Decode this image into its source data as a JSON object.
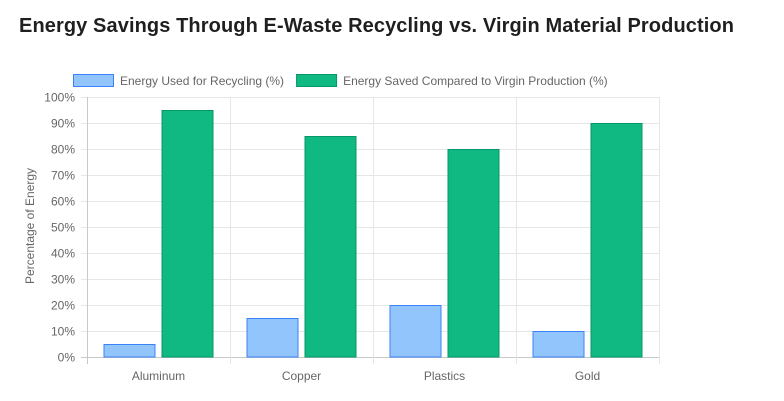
{
  "chart_data": {
    "type": "bar",
    "title": "Energy Savings Through E-Waste Recycling vs. Virgin Material Production",
    "xlabel": "",
    "ylabel": "Percentage of Energy",
    "ylim": [
      0,
      100
    ],
    "yticks": [
      0,
      10,
      20,
      30,
      40,
      50,
      60,
      70,
      80,
      90,
      100
    ],
    "ytick_suffix": "%",
    "grid": true,
    "legend_position": "top",
    "categories": [
      "Aluminum",
      "Copper",
      "Plastics",
      "Gold"
    ],
    "series": [
      {
        "name": "Energy Used for Recycling (%)",
        "values": [
          5,
          15,
          20,
          10
        ],
        "color": "#93c5fd",
        "border": "#3b82f6"
      },
      {
        "name": "Energy Saved Compared to Virgin Production (%)",
        "values": [
          95,
          85,
          80,
          90
        ],
        "color": "#10b981",
        "border": "#059669"
      }
    ]
  }
}
